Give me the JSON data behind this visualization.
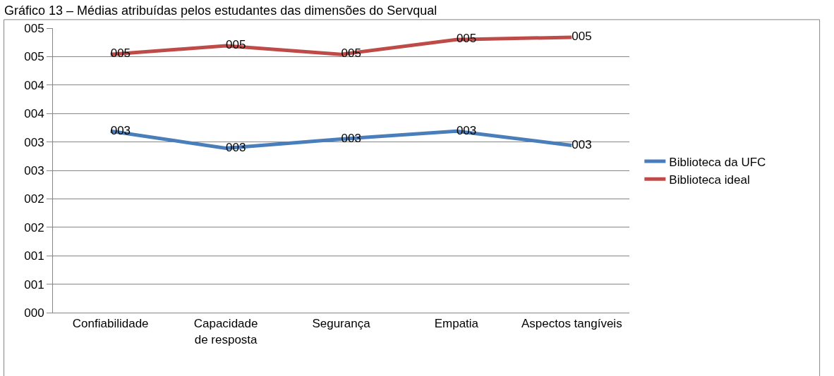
{
  "chart_data": {
    "type": "line",
    "title": "Gráfico 13 – Médias atribuídas pelos estudantes das dimensões do Servqual",
    "categories": [
      "Confiabilidade",
      "Capacidade de resposta",
      "Segurança",
      "Empatia",
      "Aspectos tangíveis"
    ],
    "series": [
      {
        "name": "Biblioteca da UFC",
        "color": "#4a7ebb",
        "values": [
          3.19,
          2.89,
          3.05,
          3.19,
          2.94
        ],
        "value_labels": [
          "003",
          "003",
          "003",
          "003",
          "003"
        ]
      },
      {
        "name": "Biblioteca ideal",
        "color": "#be4b48",
        "values": [
          4.54,
          4.69,
          4.54,
          4.8,
          4.84
        ],
        "value_labels": [
          "005",
          "005",
          "005",
          "005",
          "005"
        ]
      }
    ],
    "ylim": [
      0,
      5
    ],
    "yticks": [
      {
        "value": 0,
        "label": "000"
      },
      {
        "value": 0.5,
        "label": "001"
      },
      {
        "value": 1,
        "label": "001"
      },
      {
        "value": 1.5,
        "label": "002"
      },
      {
        "value": 2,
        "label": "002"
      },
      {
        "value": 2.5,
        "label": "003"
      },
      {
        "value": 3,
        "label": "003"
      },
      {
        "value": 3.5,
        "label": "004"
      },
      {
        "value": 4,
        "label": "004"
      },
      {
        "value": 4.5,
        "label": "005"
      },
      {
        "value": 5,
        "label": "005"
      }
    ],
    "grid": "y",
    "legend": "right",
    "marker": "none",
    "line_style": "solid"
  }
}
